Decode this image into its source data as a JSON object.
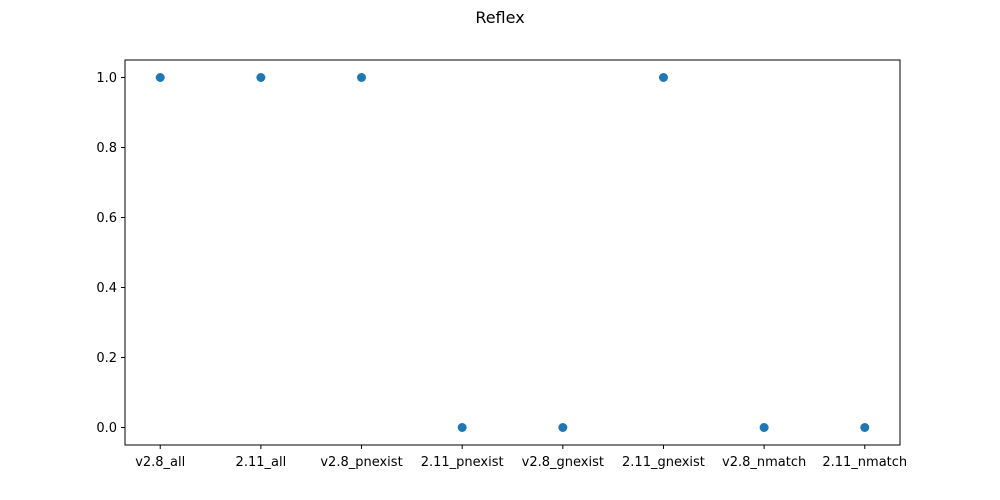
{
  "chart_data": {
    "type": "scatter",
    "title": "Reflex",
    "xlabel": "",
    "ylabel": "",
    "categories": [
      "v2.8_all",
      "2.11_all",
      "v2.8_pnexist",
      "2.11_pnexist",
      "v2.8_gnexist",
      "2.11_gnexist",
      "v2.8_nmatch",
      "2.11_nmatch"
    ],
    "values": [
      1.0,
      1.0,
      1.0,
      0.0,
      0.0,
      1.0,
      0.0,
      0.0
    ],
    "ylim": [
      -0.05,
      1.05
    ],
    "yticks": [
      "0.0",
      "0.2",
      "0.4",
      "0.6",
      "0.8",
      "1.0"
    ],
    "grid": false,
    "legend": "none",
    "marker_color": "#1f77b4"
  }
}
